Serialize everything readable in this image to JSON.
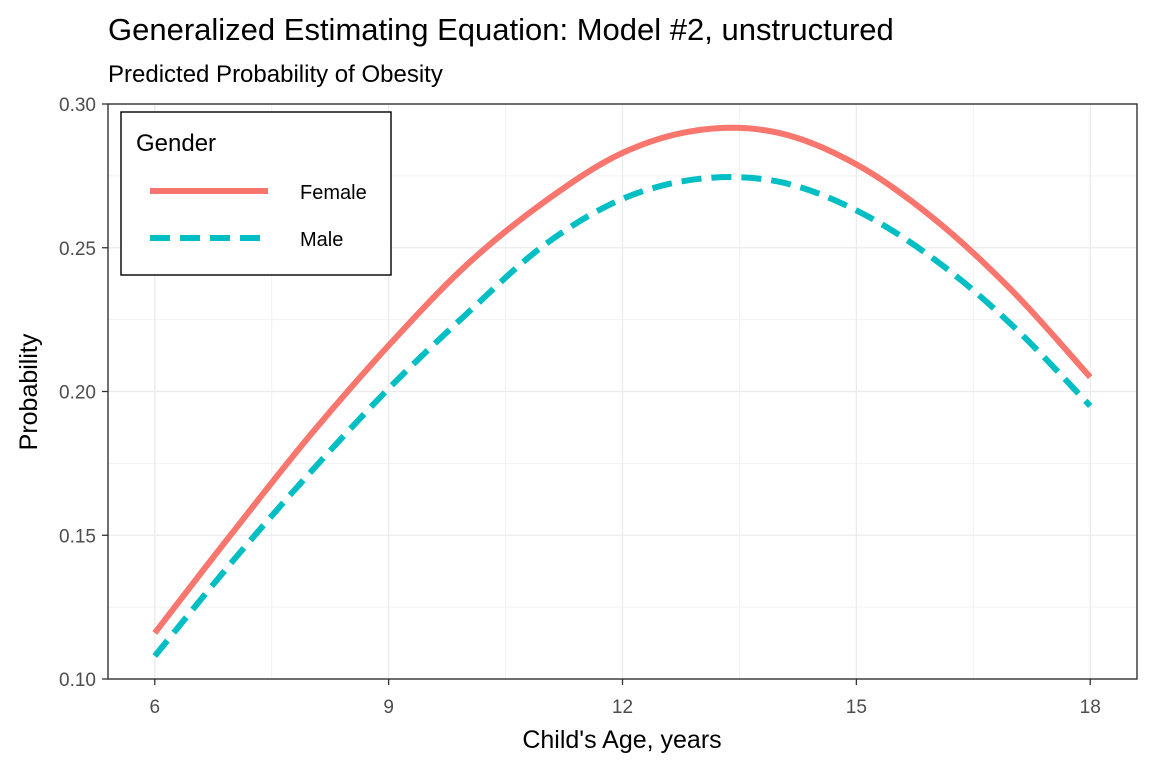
{
  "chart_data": {
    "type": "line",
    "title": "Generalized Estimating Equation: Model #2, unstructured",
    "subtitle": "Predicted Probability of Obesity",
    "xlabel": "Child's Age, years",
    "ylabel": "Probability",
    "xlim": [
      5.4,
      18.6
    ],
    "ylim": [
      0.1,
      0.3
    ],
    "x_ticks": [
      "6",
      "9",
      "12",
      "15",
      "18"
    ],
    "y_ticks": [
      "0.10",
      "0.15",
      "0.20",
      "0.25",
      "0.30"
    ],
    "grid": true,
    "legend": {
      "title": "Gender",
      "position": "top-left"
    },
    "series": [
      {
        "name": "Female",
        "color": "#F8766D",
        "linestyle": "solid",
        "x": [
          6,
          7,
          8,
          9,
          10,
          11,
          12,
          13,
          14,
          15,
          16,
          17,
          18
        ],
        "y": [
          0.116,
          0.151,
          0.185,
          0.216,
          0.244,
          0.266,
          0.283,
          0.291,
          0.29,
          0.279,
          0.26,
          0.235,
          0.205
        ]
      },
      {
        "name": "Male",
        "color": "#00BFC4",
        "linestyle": "dashed",
        "x": [
          6,
          7,
          8,
          9,
          10,
          11,
          12,
          13,
          14,
          15,
          16,
          17,
          18
        ],
        "y": [
          0.108,
          0.141,
          0.172,
          0.201,
          0.227,
          0.251,
          0.267,
          0.274,
          0.273,
          0.263,
          0.246,
          0.223,
          0.195
        ]
      }
    ]
  }
}
